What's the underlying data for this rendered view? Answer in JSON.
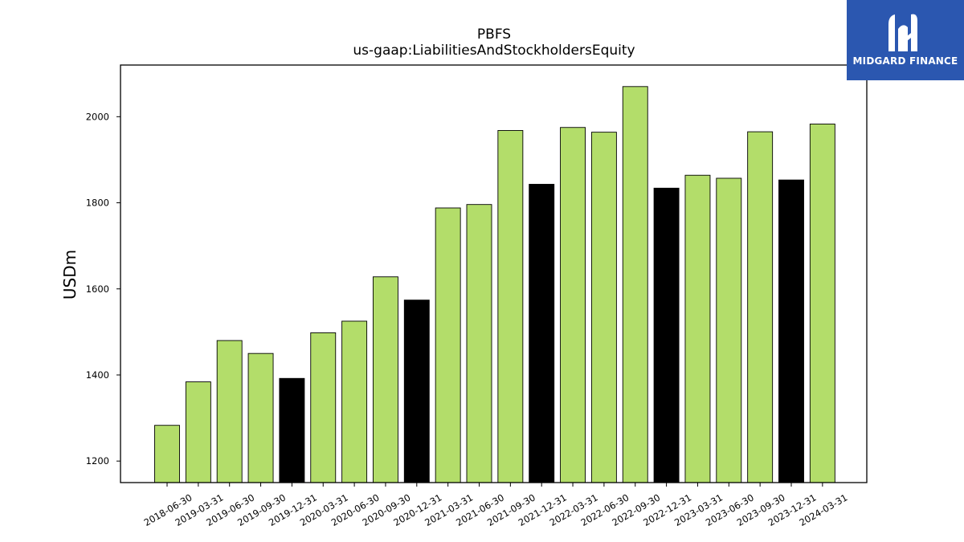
{
  "chart_data": {
    "type": "bar",
    "title": "PBFS",
    "subtitle": "us-gaap:LiabilitiesAndStockholdersEquity",
    "xlabel": "",
    "ylabel": "USDm",
    "ylim": [
      1150,
      2120
    ],
    "yticks": [
      1200,
      1400,
      1600,
      1800,
      2000
    ],
    "grid": false,
    "categories": [
      "2018-06-30",
      "2019-03-31",
      "2019-06-30",
      "2019-09-30",
      "2019-12-31",
      "2020-03-31",
      "2020-06-30",
      "2020-09-30",
      "2020-12-31",
      "2021-03-31",
      "2021-06-30",
      "2021-09-30",
      "2021-12-31",
      "2022-03-31",
      "2022-06-30",
      "2022-09-30",
      "2022-12-31",
      "2023-03-31",
      "2023-06-30",
      "2023-09-30",
      "2023-12-31",
      "2024-03-31"
    ],
    "values": [
      1283,
      1384,
      1480,
      1450,
      1392,
      1498,
      1525,
      1628,
      1574,
      1788,
      1796,
      1968,
      1843,
      1975,
      1964,
      2070,
      1834,
      1864,
      1857,
      1965,
      1853,
      1983
    ],
    "bar_colors": [
      "#b3dd6a",
      "#b3dd6a",
      "#b3dd6a",
      "#b3dd6a",
      "#000000",
      "#b3dd6a",
      "#b3dd6a",
      "#b3dd6a",
      "#000000",
      "#b3dd6a",
      "#b3dd6a",
      "#b3dd6a",
      "#000000",
      "#b3dd6a",
      "#b3dd6a",
      "#b3dd6a",
      "#000000",
      "#b3dd6a",
      "#b3dd6a",
      "#b3dd6a",
      "#000000",
      "#b3dd6a"
    ]
  },
  "logo": {
    "text": "MIDGARD FINANCE",
    "bg_color": "#2b57b0"
  }
}
